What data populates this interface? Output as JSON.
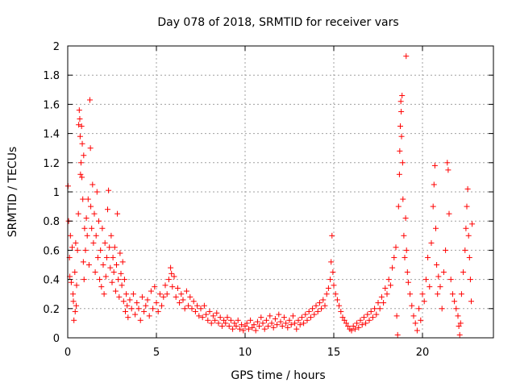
{
  "chart_data": {
    "type": "scatter",
    "title": "Day 078 of 2018, SRMTID for receiver vars",
    "xlabel": "GPS time / hours",
    "ylabel": "SRMTID / TECUs",
    "xlim": [
      0,
      24
    ],
    "ylim": [
      0,
      2
    ],
    "xticks": [
      0,
      5,
      10,
      15,
      20
    ],
    "xtick_labels": [
      "0",
      "5",
      "10",
      "15",
      "20"
    ],
    "yticks": [
      0,
      0.2,
      0.4,
      0.6,
      0.8,
      1,
      1.2,
      1.4,
      1.6,
      1.8,
      2
    ],
    "ytick_labels": [
      "0",
      "0.2",
      "0.4",
      "0.6",
      "0.8",
      "1",
      "1.2",
      "1.4",
      "1.6",
      "1.8",
      "2"
    ],
    "grid": true,
    "marker": "+",
    "color": "#ff0000",
    "series": [
      {
        "name": "SRMTID",
        "points": [
          [
            0.02,
            1.04
          ],
          [
            0.05,
            0.8
          ],
          [
            0.1,
            0.55
          ],
          [
            0.12,
            0.42
          ],
          [
            0.15,
            0.7
          ],
          [
            0.2,
            0.38
          ],
          [
            0.25,
            0.62
          ],
          [
            0.3,
            0.3
          ],
          [
            0.32,
            0.25
          ],
          [
            0.35,
            0.12
          ],
          [
            0.4,
            0.45
          ],
          [
            0.42,
            0.18
          ],
          [
            0.45,
            0.65
          ],
          [
            0.48,
            0.22
          ],
          [
            0.5,
            0.36
          ],
          [
            0.55,
            0.6
          ],
          [
            0.6,
            0.85
          ],
          [
            0.62,
            1.46
          ],
          [
            0.65,
            1.56
          ],
          [
            0.68,
            1.5
          ],
          [
            0.7,
            1.38
          ],
          [
            0.72,
            1.12
          ],
          [
            0.75,
            1.2
          ],
          [
            0.78,
            1.45
          ],
          [
            0.8,
            1.1
          ],
          [
            0.82,
            1.33
          ],
          [
            0.85,
            0.95
          ],
          [
            0.88,
            0.52
          ],
          [
            0.9,
            1.25
          ],
          [
            0.92,
            0.4
          ],
          [
            0.95,
            0.75
          ],
          [
            1.0,
            0.6
          ],
          [
            1.05,
            0.82
          ],
          [
            1.1,
            0.7
          ],
          [
            1.15,
            0.95
          ],
          [
            1.2,
            0.5
          ],
          [
            1.25,
            1.63
          ],
          [
            1.28,
            1.3
          ],
          [
            1.3,
            0.9
          ],
          [
            1.35,
            0.75
          ],
          [
            1.4,
            1.05
          ],
          [
            1.45,
            0.65
          ],
          [
            1.5,
            0.85
          ],
          [
            1.55,
            0.45
          ],
          [
            1.6,
            0.7
          ],
          [
            1.65,
            1.0
          ],
          [
            1.7,
            0.55
          ],
          [
            1.75,
            0.8
          ],
          [
            1.8,
            0.4
          ],
          [
            1.85,
            0.6
          ],
          [
            1.9,
            0.35
          ],
          [
            1.95,
            0.75
          ],
          [
            2.0,
            0.5
          ],
          [
            2.05,
            0.3
          ],
          [
            2.1,
            0.65
          ],
          [
            2.15,
            0.42
          ],
          [
            2.2,
            0.55
          ],
          [
            2.25,
            0.88
          ],
          [
            2.3,
            1.01
          ],
          [
            2.35,
            0.62
          ],
          [
            2.4,
            0.48
          ],
          [
            2.45,
            0.7
          ],
          [
            2.5,
            0.38
          ],
          [
            2.55,
            0.55
          ],
          [
            2.6,
            0.45
          ],
          [
            2.65,
            0.62
          ],
          [
            2.7,
            0.32
          ],
          [
            2.75,
            0.5
          ],
          [
            2.8,
            0.85
          ],
          [
            2.85,
            0.4
          ],
          [
            2.9,
            0.28
          ],
          [
            2.95,
            0.58
          ],
          [
            3.0,
            0.44
          ],
          [
            3.05,
            0.36
          ],
          [
            3.1,
            0.52
          ],
          [
            3.15,
            0.25
          ],
          [
            3.2,
            0.4
          ],
          [
            3.25,
            0.18
          ],
          [
            3.3,
            0.3
          ],
          [
            3.35,
            0.22
          ],
          [
            3.4,
            0.14
          ],
          [
            3.5,
            0.26
          ],
          [
            3.6,
            0.2
          ],
          [
            3.7,
            0.3
          ],
          [
            3.8,
            0.16
          ],
          [
            3.9,
            0.24
          ],
          [
            4.0,
            0.2
          ],
          [
            4.1,
            0.12
          ],
          [
            4.2,
            0.28
          ],
          [
            4.3,
            0.18
          ],
          [
            4.4,
            0.22
          ],
          [
            4.5,
            0.26
          ],
          [
            4.6,
            0.15
          ],
          [
            4.7,
            0.32
          ],
          [
            4.8,
            0.2
          ],
          [
            4.9,
            0.35
          ],
          [
            5.0,
            0.24
          ],
          [
            5.1,
            0.18
          ],
          [
            5.2,
            0.3
          ],
          [
            5.3,
            0.22
          ],
          [
            5.4,
            0.28
          ],
          [
            5.5,
            0.36
          ],
          [
            5.6,
            0.3
          ],
          [
            5.7,
            0.4
          ],
          [
            5.8,
            0.48
          ],
          [
            5.85,
            0.44
          ],
          [
            5.9,
            0.35
          ],
          [
            6.0,
            0.42
          ],
          [
            6.1,
            0.28
          ],
          [
            6.2,
            0.34
          ],
          [
            6.3,
            0.24
          ],
          [
            6.4,
            0.3
          ],
          [
            6.5,
            0.26
          ],
          [
            6.6,
            0.2
          ],
          [
            6.7,
            0.32
          ],
          [
            6.8,
            0.22
          ],
          [
            6.9,
            0.28
          ],
          [
            7.0,
            0.2
          ],
          [
            7.1,
            0.25
          ],
          [
            7.2,
            0.18
          ],
          [
            7.3,
            0.22
          ],
          [
            7.4,
            0.15
          ],
          [
            7.5,
            0.2
          ],
          [
            7.6,
            0.14
          ],
          [
            7.7,
            0.22
          ],
          [
            7.8,
            0.16
          ],
          [
            7.9,
            0.12
          ],
          [
            8.0,
            0.18
          ],
          [
            8.1,
            0.1
          ],
          [
            8.2,
            0.15
          ],
          [
            8.3,
            0.12
          ],
          [
            8.4,
            0.17
          ],
          [
            8.5,
            0.1
          ],
          [
            8.6,
            0.14
          ],
          [
            8.7,
            0.08
          ],
          [
            8.8,
            0.12
          ],
          [
            8.9,
            0.1
          ],
          [
            9.0,
            0.14
          ],
          [
            9.1,
            0.08
          ],
          [
            9.2,
            0.12
          ],
          [
            9.3,
            0.06
          ],
          [
            9.4,
            0.1
          ],
          [
            9.5,
            0.08
          ],
          [
            9.6,
            0.12
          ],
          [
            9.7,
            0.06
          ],
          [
            9.8,
            0.09
          ],
          [
            9.9,
            0.05
          ],
          [
            10.0,
            0.08
          ],
          [
            10.1,
            0.1
          ],
          [
            10.2,
            0.06
          ],
          [
            10.3,
            0.12
          ],
          [
            10.4,
            0.07
          ],
          [
            10.5,
            0.09
          ],
          [
            10.6,
            0.05
          ],
          [
            10.7,
            0.11
          ],
          [
            10.8,
            0.08
          ],
          [
            10.9,
            0.14
          ],
          [
            11.0,
            0.1
          ],
          [
            11.1,
            0.06
          ],
          [
            11.2,
            0.12
          ],
          [
            11.3,
            0.08
          ],
          [
            11.4,
            0.15
          ],
          [
            11.5,
            0.1
          ],
          [
            11.6,
            0.07
          ],
          [
            11.7,
            0.13
          ],
          [
            11.8,
            0.09
          ],
          [
            11.9,
            0.16
          ],
          [
            12.0,
            0.11
          ],
          [
            12.1,
            0.08
          ],
          [
            12.2,
            0.14
          ],
          [
            12.3,
            0.1
          ],
          [
            12.4,
            0.07
          ],
          [
            12.5,
            0.12
          ],
          [
            12.6,
            0.09
          ],
          [
            12.7,
            0.15
          ],
          [
            12.8,
            0.1
          ],
          [
            12.9,
            0.06
          ],
          [
            13.0,
            0.12
          ],
          [
            13.1,
            0.09
          ],
          [
            13.2,
            0.14
          ],
          [
            13.3,
            0.1
          ],
          [
            13.4,
            0.16
          ],
          [
            13.5,
            0.12
          ],
          [
            13.6,
            0.18
          ],
          [
            13.7,
            0.14
          ],
          [
            13.8,
            0.2
          ],
          [
            13.9,
            0.16
          ],
          [
            14.0,
            0.22
          ],
          [
            14.1,
            0.18
          ],
          [
            14.2,
            0.24
          ],
          [
            14.3,
            0.2
          ],
          [
            14.4,
            0.26
          ],
          [
            14.5,
            0.22
          ],
          [
            14.6,
            0.3
          ],
          [
            14.7,
            0.34
          ],
          [
            14.8,
            0.4
          ],
          [
            14.85,
            0.52
          ],
          [
            14.9,
            0.7
          ],
          [
            14.95,
            0.45
          ],
          [
            15.0,
            0.36
          ],
          [
            15.1,
            0.3
          ],
          [
            15.2,
            0.26
          ],
          [
            15.3,
            0.22
          ],
          [
            15.4,
            0.18
          ],
          [
            15.5,
            0.14
          ],
          [
            15.6,
            0.12
          ],
          [
            15.7,
            0.1
          ],
          [
            15.8,
            0.08
          ],
          [
            15.9,
            0.06
          ],
          [
            16.0,
            0.05
          ],
          [
            16.1,
            0.08
          ],
          [
            16.2,
            0.06
          ],
          [
            16.3,
            0.1
          ],
          [
            16.4,
            0.07
          ],
          [
            16.5,
            0.12
          ],
          [
            16.6,
            0.09
          ],
          [
            16.7,
            0.14
          ],
          [
            16.8,
            0.1
          ],
          [
            16.9,
            0.16
          ],
          [
            17.0,
            0.12
          ],
          [
            17.1,
            0.18
          ],
          [
            17.2,
            0.14
          ],
          [
            17.3,
            0.2
          ],
          [
            17.4,
            0.16
          ],
          [
            17.5,
            0.24
          ],
          [
            17.6,
            0.2
          ],
          [
            17.7,
            0.28
          ],
          [
            17.8,
            0.24
          ],
          [
            17.9,
            0.34
          ],
          [
            18.0,
            0.3
          ],
          [
            18.1,
            0.4
          ],
          [
            18.2,
            0.36
          ],
          [
            18.3,
            0.48
          ],
          [
            18.4,
            0.55
          ],
          [
            18.5,
            0.62
          ],
          [
            18.55,
            0.15
          ],
          [
            18.6,
            0.02
          ],
          [
            18.65,
            0.9
          ],
          [
            18.7,
            1.12
          ],
          [
            18.72,
            1.28
          ],
          [
            18.75,
            1.45
          ],
          [
            18.78,
            1.62
          ],
          [
            18.8,
            1.55
          ],
          [
            18.82,
            1.38
          ],
          [
            18.85,
            1.66
          ],
          [
            18.88,
            1.2
          ],
          [
            18.9,
            0.95
          ],
          [
            18.95,
            0.7
          ],
          [
            19.0,
            0.55
          ],
          [
            19.05,
            0.82
          ],
          [
            19.08,
            1.93
          ],
          [
            19.1,
            0.6
          ],
          [
            19.15,
            0.45
          ],
          [
            19.2,
            0.38
          ],
          [
            19.3,
            0.3
          ],
          [
            19.4,
            0.22
          ],
          [
            19.5,
            0.15
          ],
          [
            19.6,
            0.1
          ],
          [
            19.7,
            0.05
          ],
          [
            19.8,
            0.2
          ],
          [
            19.9,
            0.12
          ],
          [
            20.0,
            0.3
          ],
          [
            20.1,
            0.25
          ],
          [
            20.2,
            0.4
          ],
          [
            20.3,
            0.55
          ],
          [
            20.4,
            0.35
          ],
          [
            20.5,
            0.65
          ],
          [
            20.6,
            0.9
          ],
          [
            20.65,
            1.05
          ],
          [
            20.7,
            1.18
          ],
          [
            20.75,
            0.75
          ],
          [
            20.8,
            0.5
          ],
          [
            20.85,
            0.3
          ],
          [
            20.9,
            0.42
          ],
          [
            21.0,
            0.35
          ],
          [
            21.1,
            0.2
          ],
          [
            21.2,
            0.45
          ],
          [
            21.3,
            0.6
          ],
          [
            21.4,
            1.2
          ],
          [
            21.45,
            1.15
          ],
          [
            21.5,
            0.85
          ],
          [
            21.6,
            0.4
          ],
          [
            21.7,
            0.3
          ],
          [
            21.8,
            0.25
          ],
          [
            21.9,
            0.2
          ],
          [
            22.0,
            0.15
          ],
          [
            22.05,
            0.08
          ],
          [
            22.1,
            0.02
          ],
          [
            22.15,
            0.1
          ],
          [
            22.2,
            0.3
          ],
          [
            22.3,
            0.45
          ],
          [
            22.4,
            0.6
          ],
          [
            22.45,
            0.75
          ],
          [
            22.5,
            0.9
          ],
          [
            22.55,
            1.02
          ],
          [
            22.6,
            0.7
          ],
          [
            22.65,
            0.55
          ],
          [
            22.7,
            0.4
          ],
          [
            22.75,
            0.25
          ],
          [
            22.8,
            0.78
          ]
        ]
      }
    ]
  }
}
